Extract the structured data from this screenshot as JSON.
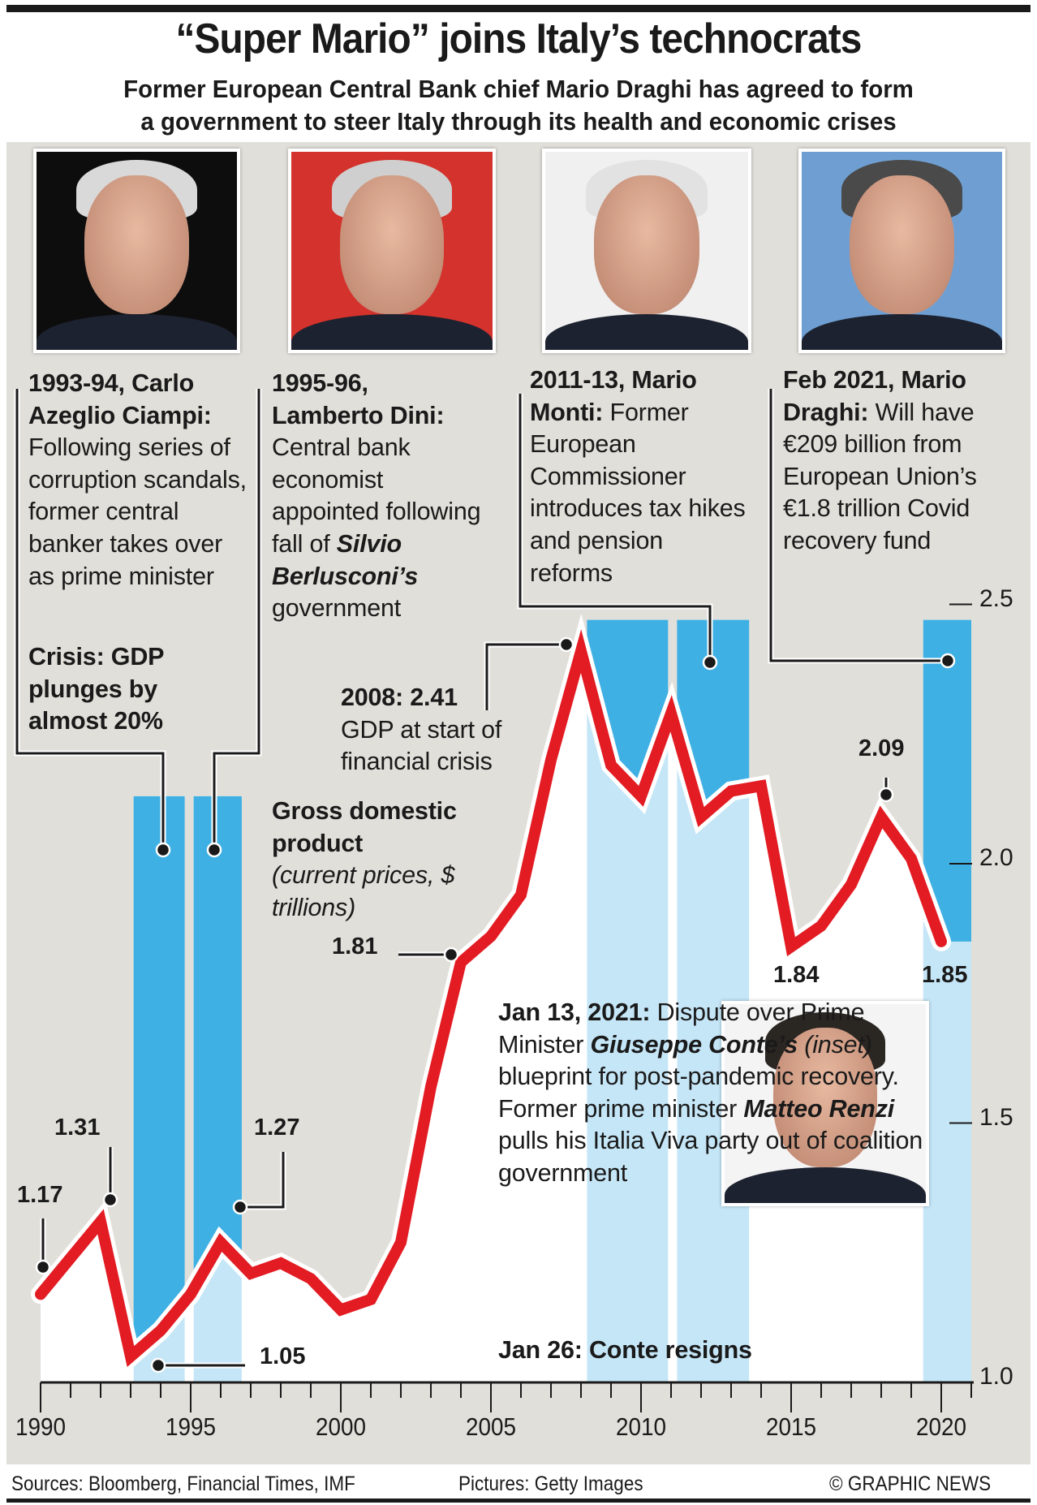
{
  "header": {
    "title": "“Super Mario” joins Italy’s technocrats",
    "subtitle_line1": "Former European Central Bank chief Mario Draghi has agreed to form",
    "subtitle_line2": "a government to steer Italy through its health and economic crises"
  },
  "colors": {
    "line": "#e31b23",
    "bar_above": "#3fb0e4",
    "bar_below": "#c5e6f7",
    "panel": "#e0dfd9",
    "area": "#ffffff"
  },
  "photos": [
    {
      "name": "carlo-ciampi-photo",
      "bg": "#0d0d0d",
      "hair": "#d9d9d9"
    },
    {
      "name": "lamberto-dini-photo",
      "bg": "#d4322c",
      "hair": "#cfcfcf"
    },
    {
      "name": "mario-monti-photo",
      "bg": "#f0f0f0",
      "hair": "#e2e2e2"
    },
    {
      "name": "mario-draghi-photo",
      "bg": "#6f9fd2",
      "hair": "#4a4a4a"
    },
    {
      "name": "giuseppe-conte-photo",
      "bg": "#f4f4f4",
      "hair": "#2a2622"
    }
  ],
  "notes": {
    "ciampi": {
      "bold": "1993-94, Carlo Azeglio Ciampi:",
      "text": " Following series of corruption scandals, former central banker takes over as prime minister",
      "crisis": "Crisis: GDP plunges by almost 20%"
    },
    "dini": {
      "bold": "1995-96, Lamberto Dini:",
      "text1": " Central bank economist appointed following fall of ",
      "name": "Silvio Berlusconi’s",
      "text2": " government"
    },
    "monti": {
      "bold": "2011-13, Mario Monti:",
      "text": " Former European Commissioner introduces tax hikes and pension reforms"
    },
    "draghi": {
      "bold": "Feb 2021, Mario Draghi:",
      "text": " Will have €209 billion from European Union’s €1.8 trillion Covid recovery fund"
    },
    "crisis2008": {
      "bold": "2008: 2.41",
      "text": "GDP at start of financial crisis"
    },
    "conte": {
      "bold": "Jan 13, 2021:",
      "t1": " Dispute over Prime Minister ",
      "n1": "Giuseppe Conte’s",
      "t2": " (inset)",
      "t3": " blueprint for post-pandemic recovery. Former prime minister ",
      "n2": "Matteo Renzi",
      "t4": " pulls his Italia Viva party out of coalition government",
      "resign": "Jan 26: Conte resigns"
    }
  },
  "chart_data": {
    "type": "line",
    "title": "Gross domestic product",
    "ylabel": "(current prices, $ trillions)",
    "xlabel": "",
    "xlim": [
      1990,
      2021
    ],
    "ylim": [
      1.0,
      2.5
    ],
    "x_ticks": [
      "1990",
      "1995",
      "2000",
      "2005",
      "2010",
      "2015",
      "2020"
    ],
    "y_ticks": [
      "2.5",
      "2.0",
      "1.5",
      "1.0"
    ],
    "grid": false,
    "x": [
      1990,
      1991,
      1992,
      1993,
      1994,
      1995,
      1996,
      1997,
      1998,
      1999,
      2000,
      2001,
      2002,
      2003,
      2004,
      2005,
      2006,
      2007,
      2008,
      2009,
      2010,
      2011,
      2012,
      2013,
      2014,
      2015,
      2016,
      2017,
      2018,
      2019,
      2020
    ],
    "values": [
      1.17,
      1.24,
      1.31,
      1.05,
      1.1,
      1.17,
      1.27,
      1.21,
      1.23,
      1.2,
      1.14,
      1.16,
      1.27,
      1.57,
      1.81,
      1.86,
      1.94,
      2.2,
      2.41,
      2.19,
      2.13,
      2.29,
      2.09,
      2.14,
      2.15,
      1.84,
      1.88,
      1.96,
      2.09,
      2.01,
      1.85
    ],
    "data_labels": [
      {
        "x": 1990,
        "value": 1.17,
        "text": "1.17"
      },
      {
        "x": 1992,
        "value": 1.31,
        "text": "1.31"
      },
      {
        "x": 1993,
        "value": 1.05,
        "text": "1.05"
      },
      {
        "x": 1996,
        "value": 1.27,
        "text": "1.27"
      },
      {
        "x": 2004,
        "value": 1.81,
        "text": "1.81"
      },
      {
        "x": 2015,
        "value": 1.84,
        "text": "1.84"
      },
      {
        "x": 2018,
        "value": 2.09,
        "text": "2.09"
      },
      {
        "x": 2020,
        "value": 1.85,
        "text": "1.85"
      }
    ],
    "technocrat_periods": [
      {
        "label": "Ciampi",
        "start": 1993.1,
        "end": 1994.8,
        "top": 2.13
      },
      {
        "label": "Dini",
        "start": 1995.1,
        "end": 1996.7,
        "top": 2.13
      },
      {
        "label": "Monti",
        "start": 2008.2,
        "end": 2010.9,
        "top": 2.47
      },
      {
        "label": "Monti",
        "start": 2011.2,
        "end": 2013.6,
        "top": 2.47
      },
      {
        "label": "Draghi",
        "start": 2019.4,
        "end": 2021.0,
        "top": 2.47
      }
    ]
  },
  "footer": {
    "sources": "Sources: Bloomberg, Financial Times, IMF",
    "pictures": "Pictures: Getty Images",
    "credit": "© GRAPHIC NEWS"
  }
}
